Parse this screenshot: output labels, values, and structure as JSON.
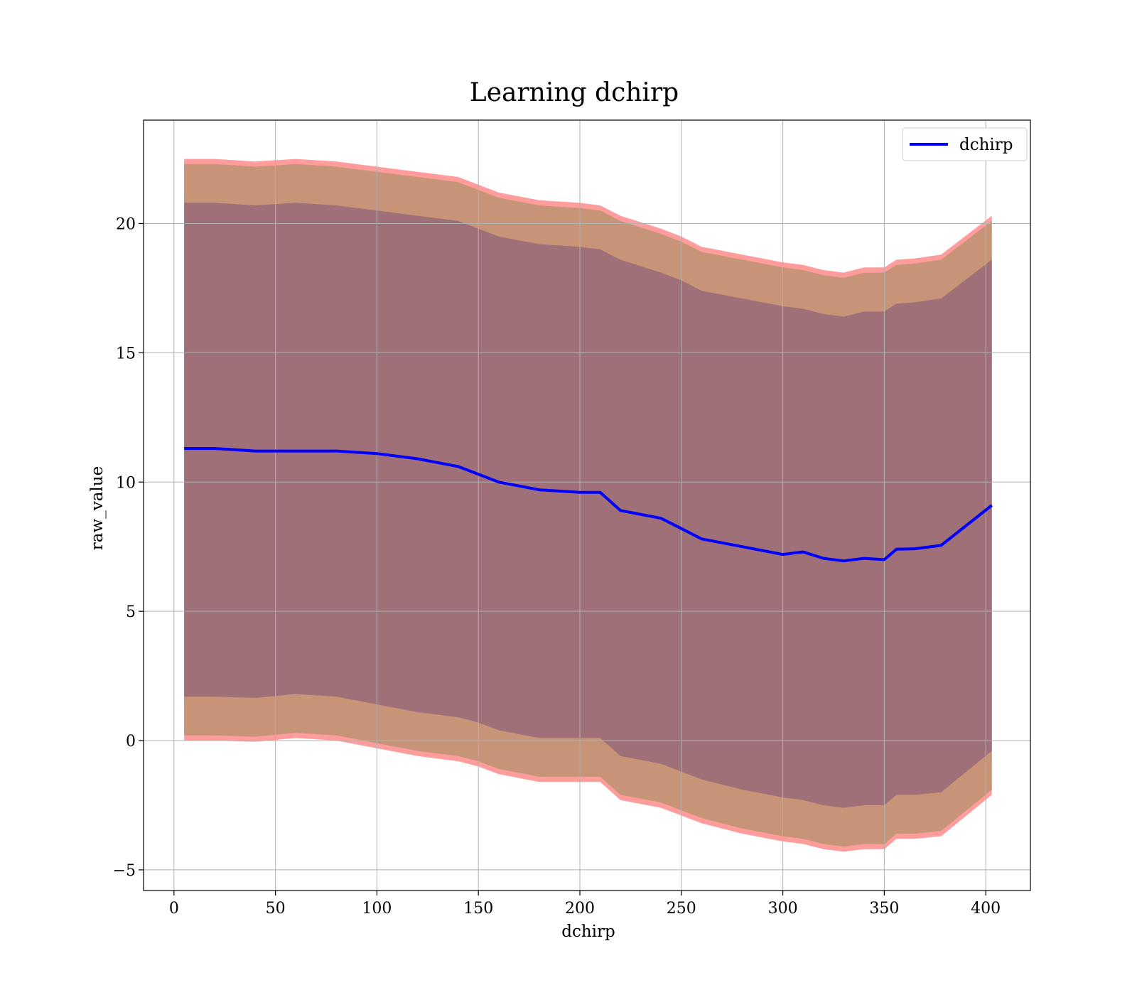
{
  "chart_data": {
    "type": "line",
    "title": "Learning dchirp",
    "xlabel": "dchirp",
    "ylabel": "raw_value",
    "xlim": [
      -15,
      422
    ],
    "ylim": [
      -5.8,
      24.0
    ],
    "xticks": [
      0,
      50,
      100,
      150,
      200,
      250,
      300,
      350,
      400
    ],
    "xtick_labels": [
      "0",
      "50",
      "100",
      "150",
      "200",
      "250",
      "300",
      "350",
      "400"
    ],
    "yticks": [
      -5,
      0,
      5,
      10,
      15,
      20
    ],
    "ytick_labels": [
      "−5",
      "0",
      "5",
      "10",
      "15",
      "20"
    ],
    "grid": true,
    "legend": {
      "position": "top-right",
      "entries": [
        "dchirp"
      ]
    },
    "colors": {
      "line": "#0000ff",
      "outer_band": "#ff9c9c",
      "middle_band": "#c89478",
      "inner_band": "#a07078"
    },
    "x": [
      5,
      20,
      40,
      60,
      80,
      100,
      120,
      140,
      150,
      160,
      180,
      200,
      210,
      220,
      240,
      250,
      260,
      280,
      300,
      310,
      320,
      330,
      340,
      350,
      356,
      365,
      378,
      403
    ],
    "series": [
      {
        "name": "dchirp",
        "values": [
          11.3,
          11.3,
          11.2,
          11.2,
          11.2,
          11.1,
          10.9,
          10.6,
          10.3,
          10.0,
          9.7,
          9.6,
          9.6,
          8.9,
          8.6,
          8.2,
          7.8,
          7.5,
          7.2,
          7.3,
          7.05,
          6.95,
          7.05,
          7.0,
          7.4,
          7.42,
          7.55,
          9.1
        ]
      }
    ],
    "bands": [
      {
        "upper": [
          22.5,
          22.5,
          22.4,
          22.5,
          22.4,
          22.2,
          22.0,
          21.8,
          21.5,
          21.2,
          20.9,
          20.8,
          20.7,
          20.3,
          19.8,
          19.5,
          19.1,
          18.8,
          18.5,
          18.4,
          18.2,
          18.1,
          18.3,
          18.3,
          18.6,
          18.65,
          18.8,
          20.3
        ],
        "lower": [
          0.0,
          0.0,
          -0.05,
          0.1,
          0.0,
          -0.3,
          -0.6,
          -0.8,
          -1.0,
          -1.3,
          -1.6,
          -1.6,
          -1.6,
          -2.3,
          -2.6,
          -2.9,
          -3.2,
          -3.6,
          -3.9,
          -4.0,
          -4.2,
          -4.3,
          -4.2,
          -4.2,
          -3.8,
          -3.8,
          -3.7,
          -2.1
        ]
      },
      {
        "upper": [
          22.3,
          22.3,
          22.2,
          22.3,
          22.2,
          22.0,
          21.8,
          21.6,
          21.3,
          21.0,
          20.7,
          20.6,
          20.5,
          20.1,
          19.6,
          19.3,
          18.9,
          18.6,
          18.3,
          18.2,
          18.0,
          17.9,
          18.1,
          18.1,
          18.4,
          18.45,
          18.6,
          20.1
        ],
        "lower": [
          0.2,
          0.2,
          0.15,
          0.3,
          0.2,
          -0.1,
          -0.4,
          -0.6,
          -0.8,
          -1.1,
          -1.4,
          -1.4,
          -1.4,
          -2.1,
          -2.4,
          -2.7,
          -3.0,
          -3.4,
          -3.7,
          -3.8,
          -4.0,
          -4.1,
          -4.0,
          -4.0,
          -3.6,
          -3.6,
          -3.5,
          -1.9
        ]
      },
      {
        "upper": [
          20.8,
          20.8,
          20.7,
          20.8,
          20.7,
          20.5,
          20.3,
          20.1,
          19.8,
          19.5,
          19.2,
          19.1,
          19.0,
          18.6,
          18.1,
          17.8,
          17.4,
          17.1,
          16.8,
          16.7,
          16.5,
          16.4,
          16.6,
          16.6,
          16.9,
          16.95,
          17.1,
          18.6
        ],
        "lower": [
          1.7,
          1.7,
          1.65,
          1.8,
          1.7,
          1.4,
          1.1,
          0.9,
          0.7,
          0.4,
          0.1,
          0.1,
          0.1,
          -0.6,
          -0.9,
          -1.2,
          -1.5,
          -1.9,
          -2.2,
          -2.3,
          -2.5,
          -2.6,
          -2.5,
          -2.5,
          -2.1,
          -2.1,
          -2.0,
          -0.4
        ]
      }
    ]
  }
}
